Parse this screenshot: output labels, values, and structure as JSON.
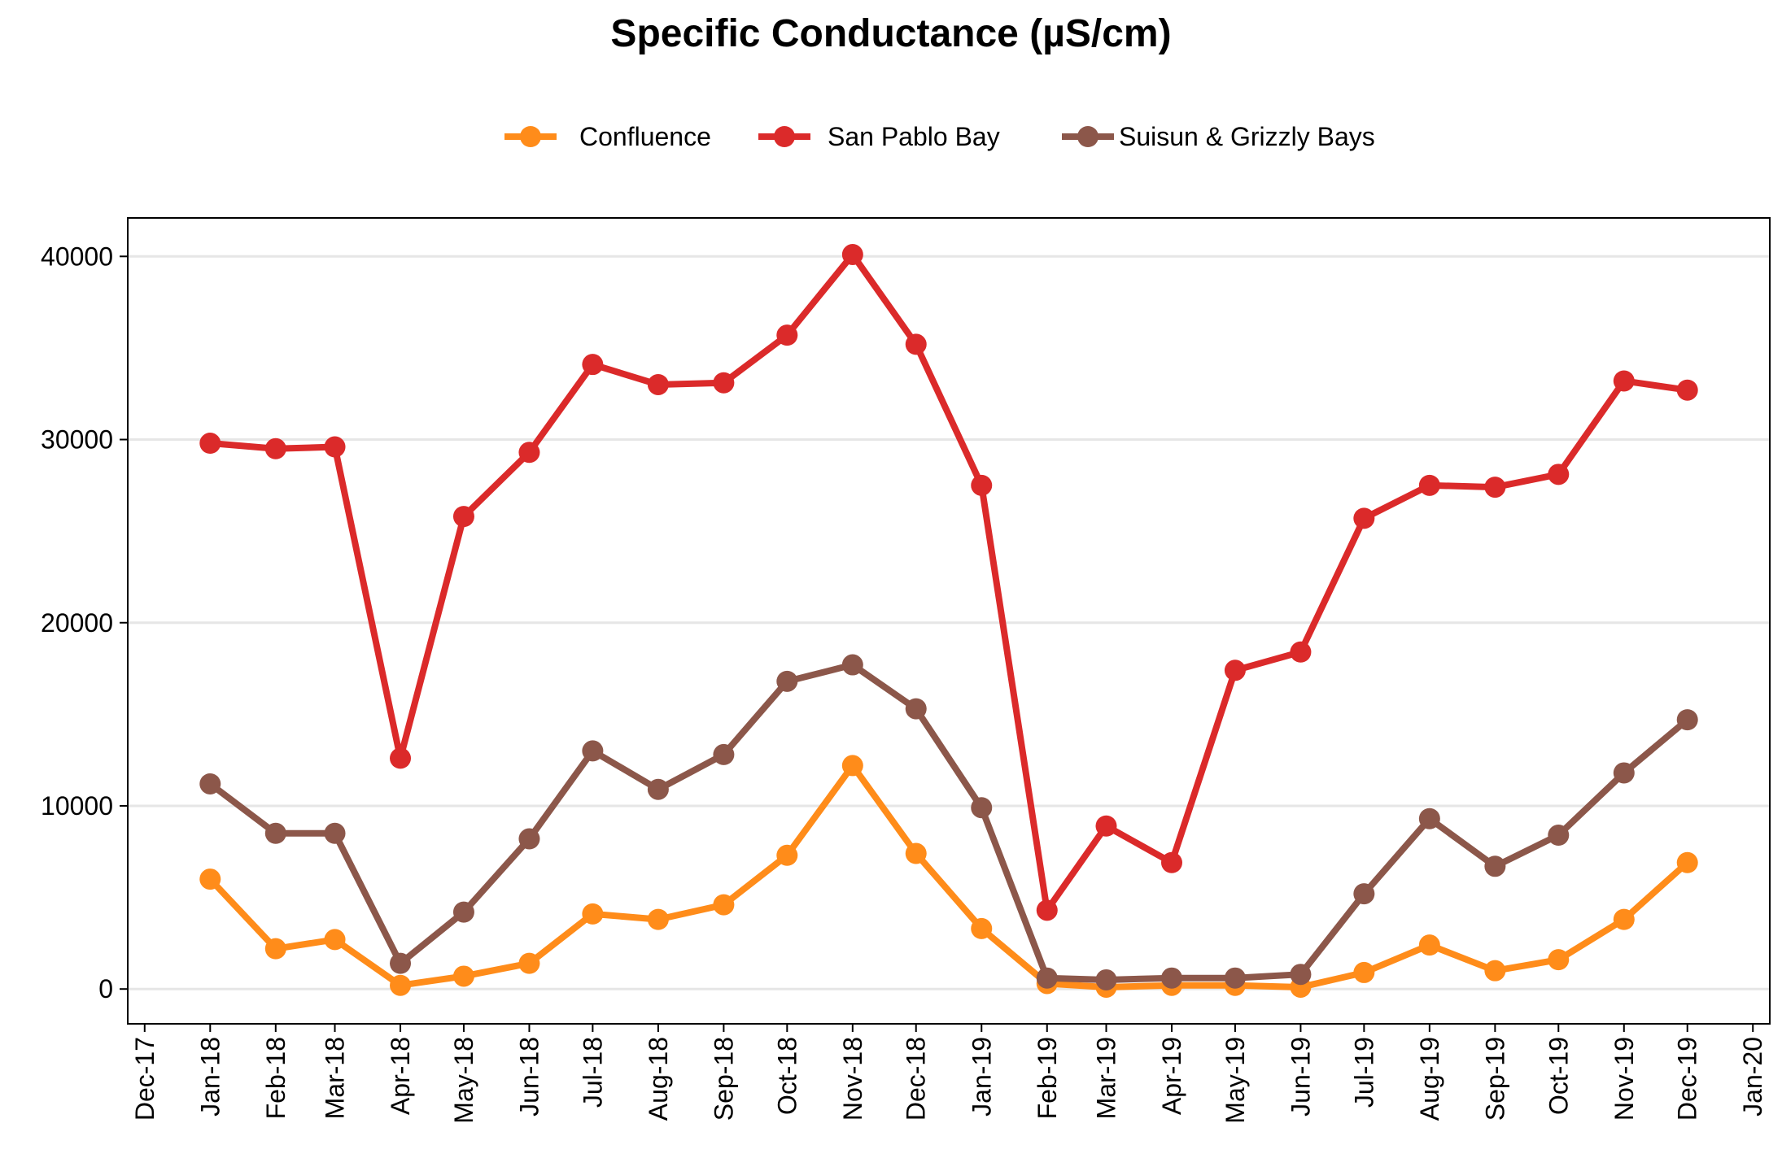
{
  "chart_data": {
    "type": "line",
    "title": "Specific Conductance (µS/cm)",
    "xlabel": "",
    "ylabel": "",
    "x_tick_labels": [
      "Dec-17",
      "Jan-18",
      "Feb-18",
      "Mar-18",
      "Apr-18",
      "May-18",
      "Jun-18",
      "Jul-18",
      "Aug-18",
      "Sep-18",
      "Oct-18",
      "Nov-18",
      "Dec-18",
      "Jan-19",
      "Feb-19",
      "Mar-19",
      "Apr-19",
      "May-19",
      "Jun-19",
      "Jul-19",
      "Aug-19",
      "Sep-19",
      "Oct-19",
      "Nov-19",
      "Dec-19",
      "Jan-20"
    ],
    "x_dates": [
      "2017-12-01",
      "2018-01-01",
      "2018-02-01",
      "2018-03-01",
      "2018-04-01",
      "2018-05-01",
      "2018-06-01",
      "2018-07-01",
      "2018-08-01",
      "2018-09-01",
      "2018-10-01",
      "2018-11-01",
      "2018-12-01",
      "2019-01-01",
      "2019-02-01",
      "2019-03-01",
      "2019-04-01",
      "2019-05-01",
      "2019-06-01",
      "2019-07-01",
      "2019-08-01",
      "2019-09-01",
      "2019-10-01",
      "2019-11-01",
      "2019-12-01",
      "2020-01-01"
    ],
    "point_dates": [
      "2018-01-01",
      "2018-02-01",
      "2018-03-01",
      "2018-04-01",
      "2018-05-01",
      "2018-06-01",
      "2018-07-01",
      "2018-08-01",
      "2018-09-01",
      "2018-10-01",
      "2018-11-01",
      "2018-12-01",
      "2019-01-01",
      "2019-02-01",
      "2019-03-01",
      "2019-04-01",
      "2019-05-01",
      "2019-06-01",
      "2019-07-01",
      "2019-08-01",
      "2019-09-01",
      "2019-10-01",
      "2019-11-01",
      "2019-12-01"
    ],
    "series": [
      {
        "name": "Confluence",
        "color": "#FF8C1A",
        "values": [
          6000,
          2200,
          2700,
          200,
          700,
          1400,
          4100,
          3800,
          4600,
          7300,
          12200,
          7400,
          3300,
          300,
          100,
          200,
          200,
          100,
          900,
          2400,
          1000,
          1600,
          3800,
          6900
        ]
      },
      {
        "name": "San Pablo Bay",
        "color": "#DB2A2A",
        "values": [
          29800,
          29500,
          29600,
          12600,
          25800,
          29300,
          34100,
          33000,
          33100,
          35700,
          40100,
          35200,
          27500,
          4300,
          8900,
          6900,
          17400,
          18400,
          25700,
          27500,
          27400,
          28100,
          33200,
          32700
        ]
      },
      {
        "name": "Suisun & Grizzly Bays",
        "color": "#8C574A",
        "values": [
          11200,
          8500,
          8500,
          1400,
          4200,
          8200,
          13000,
          10900,
          12800,
          16800,
          17700,
          15300,
          9900,
          600,
          500,
          600,
          600,
          800,
          5200,
          9300,
          6700,
          8400,
          11800,
          14700
        ]
      }
    ],
    "y_ticks": [
      0,
      10000,
      20000,
      30000,
      40000
    ],
    "y_tick_labels": [
      "0",
      "10000",
      "20000",
      "30000",
      "40000"
    ],
    "ylim": [
      -1900,
      42100
    ],
    "xlim": [
      "2017-11-23",
      "2020-01-09"
    ],
    "grid": "horizontal",
    "legend_position": "top"
  }
}
